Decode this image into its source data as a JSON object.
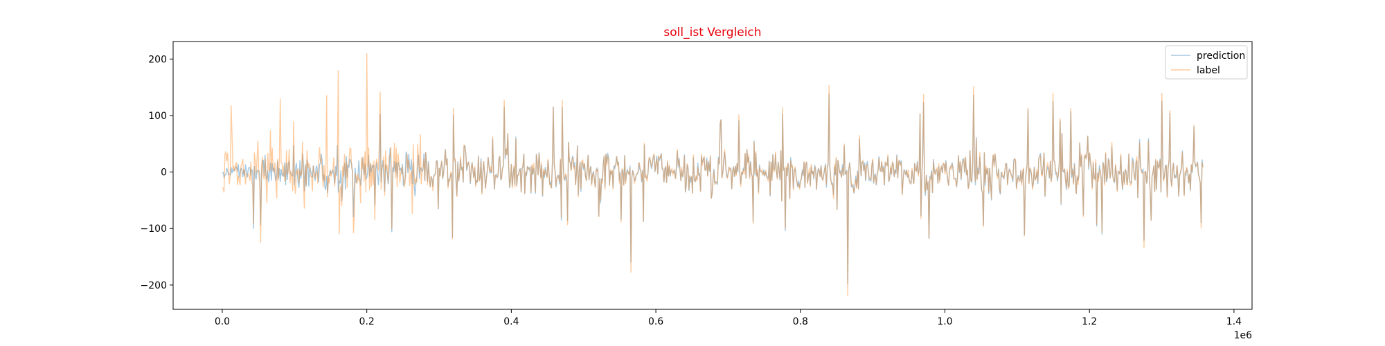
{
  "chart_data": {
    "type": "line",
    "title": "soll_ist Vergleich",
    "title_color": "#e8000b",
    "xlabel": "",
    "ylabel": "",
    "x_scale_label": "1e6",
    "x_range": [
      0,
      1.357
    ],
    "xlim": [
      -0.068,
      1.425
    ],
    "ylim": [
      -243,
      231
    ],
    "x_ticks": [
      0.0,
      0.2,
      0.4,
      0.6,
      0.8,
      1.0,
      1.2,
      1.4
    ],
    "x_tick_labels": [
      "0.0",
      "0.2",
      "0.4",
      "0.6",
      "0.8",
      "1.0",
      "1.2",
      "1.4"
    ],
    "y_ticks": [
      200,
      100,
      0,
      -100,
      -200
    ],
    "y_tick_labels": [
      "200",
      "100",
      "0",
      "−100",
      "−200"
    ],
    "grid": false,
    "legend_position": "top-right",
    "series": [
      {
        "name": "prediction",
        "color": "#1f77b4",
        "opacity": 0.4
      },
      {
        "name": "label",
        "color": "#ff7f0e",
        "opacity": 0.4
      }
    ],
    "label_peaks": [
      {
        "x": 0.012,
        "y": 118
      },
      {
        "x": 0.08,
        "y": 130
      },
      {
        "x": 0.145,
        "y": 136
      },
      {
        "x": 0.16,
        "y": 180
      },
      {
        "x": 0.162,
        "y": -110
      },
      {
        "x": 0.2,
        "y": 210
      },
      {
        "x": 0.32,
        "y": 113
      },
      {
        "x": 0.39,
        "y": 128
      },
      {
        "x": 0.47,
        "y": 128
      },
      {
        "x": 0.565,
        "y": -178
      },
      {
        "x": 0.715,
        "y": 102
      },
      {
        "x": 0.775,
        "y": 115
      },
      {
        "x": 0.84,
        "y": 154
      },
      {
        "x": 0.865,
        "y": -220
      },
      {
        "x": 0.97,
        "y": 138
      },
      {
        "x": 1.04,
        "y": 152
      },
      {
        "x": 1.15,
        "y": 140
      },
      {
        "x": 1.275,
        "y": -135
      },
      {
        "x": 1.3,
        "y": 140
      },
      {
        "x": 1.355,
        "y": -100
      }
    ]
  }
}
